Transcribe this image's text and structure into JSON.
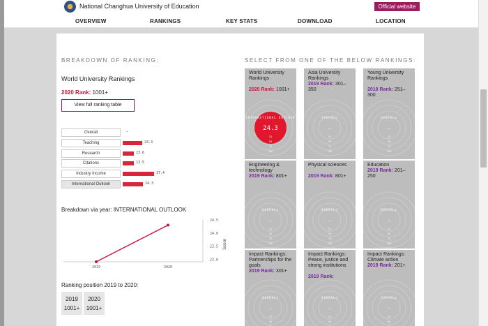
{
  "header": {
    "university_name": "National Changhua University of Education",
    "official_button": "Official website"
  },
  "nav": [
    "OVERVIEW",
    "RANKINGS",
    "KEY STATS",
    "DOWNLOAD",
    "LOCATION"
  ],
  "breakdown": {
    "section_title": "BREAKDOWN OF RANKING:",
    "ranking_name": "World University Rankings",
    "rank_label": "2020 Rank:",
    "rank_value": "1001+",
    "view_button": "View full ranking table",
    "metrics": [
      {
        "label": "Overall",
        "value": "–",
        "score": 0
      },
      {
        "label": "Teaching",
        "value": "23.3",
        "score": 23.3
      },
      {
        "label": "Research",
        "value": "13.6",
        "score": 13.6
      },
      {
        "label": "Citations",
        "value": "13.5",
        "score": 13.5
      },
      {
        "label": "Industry Income",
        "value": "37.4",
        "score": 37.4
      },
      {
        "label": "International Outlook",
        "value": "24.3",
        "score": 24.3
      }
    ],
    "selected_metric": "International Outlook"
  },
  "year_chart": {
    "title": "Breakdown via year: INTERNATIONAL OUTLOOK",
    "ylabel": "Score",
    "x_ticks": [
      "2019",
      "2020"
    ],
    "y_ticks": [
      "24.5",
      "24.0",
      "23.5",
      "23.0"
    ]
  },
  "chart_data": {
    "type": "line",
    "title": "Breakdown via year: INTERNATIONAL OUTLOOK",
    "xlabel": "",
    "ylabel": "Score",
    "x": [
      "2019",
      "2020"
    ],
    "series": [
      {
        "values": [
          22.9,
          24.3
        ]
      }
    ],
    "ylim": [
      22.9,
      24.5
    ],
    "grid": false
  },
  "positions": {
    "title": "Ranking position 2019 to 2020:",
    "items": [
      {
        "year": "2019",
        "rank": "1001+"
      },
      {
        "year": "2020",
        "rank": "1001+"
      }
    ]
  },
  "selector": {
    "section_title": "SELECT FROM ONE OF THE BELOW RANKINGS:",
    "tiles": [
      {
        "title": "World University Rankings",
        "rank_label": "2020 Rank:",
        "rank_value": "1001+",
        "label_color": "red",
        "active": true,
        "dial_label": "INTERNATIONAL OUTLOOK",
        "dial_value": "24.3"
      },
      {
        "title": "Asia University Rankings",
        "rank_label": "2019 Rank:",
        "rank_value": "301–350",
        "label_color": "purple",
        "active": false,
        "dial_label": "OVERALL",
        "dial_value": "—"
      },
      {
        "title": "Young University Rankings",
        "rank_label": "2019 Rank:",
        "rank_value": "251–300",
        "label_color": "purple",
        "active": false,
        "dial_label": "OVERALL",
        "dial_value": "—"
      },
      {
        "title": "Engineering & technology",
        "rank_label": "2019 Rank:",
        "rank_value": "801+",
        "label_color": "purple",
        "active": false,
        "dial_label": "OVERALL",
        "dial_value": "—"
      },
      {
        "title": "Physical sciences",
        "rank_label": "2019 Rank:",
        "rank_value": "801+",
        "label_color": "purple",
        "active": false,
        "dial_label": "OVERALL",
        "dial_value": "—"
      },
      {
        "title": "Education",
        "rank_label": "2019 Rank:",
        "rank_value": "201–250",
        "label_color": "purple",
        "active": false,
        "dial_label": "OVERALL",
        "dial_value": "—"
      },
      {
        "title": "Impact Rankings: Partnerships for the goals",
        "rank_label": "2019 Rank:",
        "rank_value": "301+",
        "label_color": "purple",
        "active": false,
        "dial_label": "OVERALL",
        "dial_value": "—"
      },
      {
        "title": "Impact Rankings: Peace, justice and strong institutions",
        "rank_label": "2019 Rank:",
        "rank_value": "",
        "label_color": "purple",
        "active": false,
        "dial_label": "OVERALL",
        "dial_value": "—"
      },
      {
        "title": "Impact Rankings: Climate action",
        "rank_label": "2019 Rank:",
        "rank_value": "201+",
        "label_color": "purple",
        "active": false,
        "dial_label": "OVERALL",
        "dial_value": "—"
      }
    ],
    "ring_ticks": [
      "25",
      "50",
      "75",
      "100"
    ]
  },
  "colors": {
    "accent": "#9c1c5f",
    "bar": "#d9263d",
    "rank_red": "#c8143c",
    "rank_purple": "#7a2b9e",
    "tile": "#bdbdbd",
    "dial_active": "#e0182d"
  }
}
